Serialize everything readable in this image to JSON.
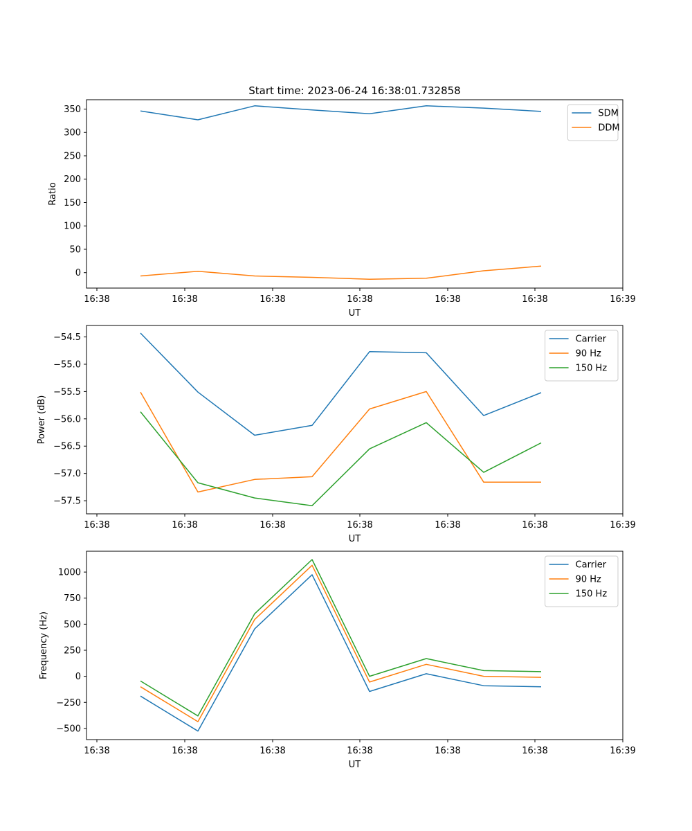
{
  "figure": {
    "title": "Start time: 2023-06-24 16:38:01.732858"
  },
  "chart_data": [
    {
      "type": "line",
      "xlabel": "UT",
      "ylabel": "Ratio",
      "x_tick_labels": [
        "16:38",
        "16:38",
        "16:38",
        "16:38",
        "16:38",
        "16:38",
        "16:39"
      ],
      "x_points": 8,
      "ylim": [
        -33,
        370
      ],
      "y_ticks": [
        0,
        50,
        100,
        150,
        200,
        250,
        300,
        350
      ],
      "legend": "top-right",
      "grid": false,
      "series": [
        {
          "name": "SDM",
          "color": "#1f77b4",
          "values": [
            346,
            327,
            357,
            348,
            340,
            357,
            352,
            345
          ]
        },
        {
          "name": "DDM",
          "color": "#ff7f0e",
          "values": [
            -7,
            3,
            -7,
            -10,
            -14,
            -12,
            4,
            14
          ]
        }
      ]
    },
    {
      "type": "line",
      "xlabel": "UT",
      "ylabel": "Power (dB)",
      "x_tick_labels": [
        "16:38",
        "16:38",
        "16:38",
        "16:38",
        "16:38",
        "16:38",
        "16:39"
      ],
      "x_points": 8,
      "ylim": [
        -57.74,
        -54.29
      ],
      "y_ticks": [
        -57.5,
        -57.0,
        -56.5,
        -56.0,
        -55.5,
        -55.0,
        -54.5
      ],
      "legend": "top-right",
      "grid": false,
      "series": [
        {
          "name": "Carrier",
          "color": "#1f77b4",
          "values": [
            -54.43,
            -55.51,
            -56.3,
            -56.12,
            -54.77,
            -54.79,
            -55.94,
            -55.52
          ]
        },
        {
          "name": "90 Hz",
          "color": "#ff7f0e",
          "values": [
            -55.51,
            -57.34,
            -57.11,
            -57.06,
            -55.82,
            -55.5,
            -57.16,
            -57.16
          ]
        },
        {
          "name": "150 Hz",
          "color": "#2ca02c",
          "values": [
            -55.87,
            -57.17,
            -57.45,
            -57.59,
            -56.55,
            -56.07,
            -56.98,
            -56.44
          ]
        }
      ]
    },
    {
      "type": "line",
      "xlabel": "UT",
      "ylabel": "Frequency (Hz)",
      "x_tick_labels": [
        "16:38",
        "16:38",
        "16:38",
        "16:38",
        "16:38",
        "16:38",
        "16:39"
      ],
      "x_points": 8,
      "ylim": [
        -607,
        1200
      ],
      "y_ticks": [
        -500,
        -250,
        0,
        250,
        500,
        750,
        1000
      ],
      "legend": "top-right",
      "grid": false,
      "series": [
        {
          "name": "Carrier",
          "color": "#1f77b4",
          "values": [
            -190,
            -525,
            455,
            975,
            -145,
            25,
            -90,
            -100
          ]
        },
        {
          "name": "90 Hz",
          "color": "#ff7f0e",
          "values": [
            -100,
            -435,
            545,
            1065,
            -55,
            115,
            0,
            -10
          ]
        },
        {
          "name": "150 Hz",
          "color": "#2ca02c",
          "values": [
            -45,
            -380,
            600,
            1120,
            0,
            170,
            55,
            45
          ]
        }
      ]
    }
  ]
}
